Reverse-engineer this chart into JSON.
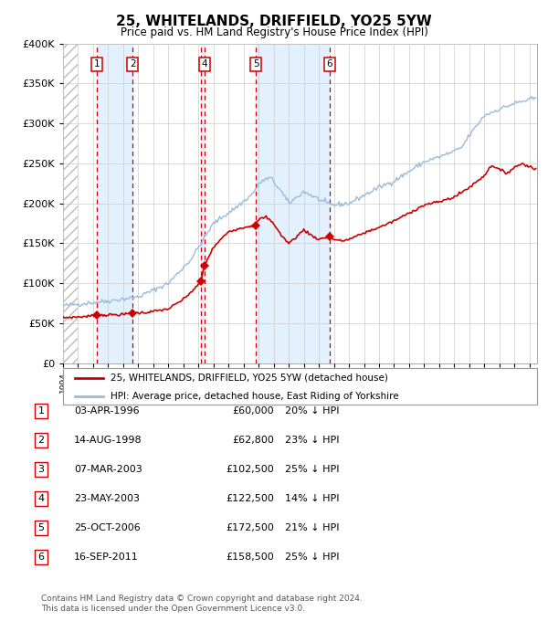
{
  "title": "25, WHITELANDS, DRIFFIELD, YO25 5YW",
  "subtitle": "Price paid vs. HM Land Registry's House Price Index (HPI)",
  "transactions": [
    {
      "num": 1,
      "date": "1996-04-03",
      "price": 60000,
      "year_x": 1996.25,
      "show_box": true
    },
    {
      "num": 2,
      "date": "1998-08-14",
      "price": 62800,
      "year_x": 1998.62,
      "show_box": true
    },
    {
      "num": 3,
      "date": "2003-03-07",
      "price": 102500,
      "year_x": 2003.18,
      "show_box": false
    },
    {
      "num": 4,
      "date": "2003-05-23",
      "price": 122500,
      "year_x": 2003.39,
      "show_box": true
    },
    {
      "num": 5,
      "date": "2006-10-25",
      "price": 172500,
      "year_x": 2006.82,
      "show_box": true
    },
    {
      "num": 6,
      "date": "2011-09-16",
      "price": 158500,
      "year_x": 2011.71,
      "show_box": true
    }
  ],
  "legend_line1": "25, WHITELANDS, DRIFFIELD, YO25 5YW (detached house)",
  "legend_line2": "HPI: Average price, detached house, East Riding of Yorkshire",
  "table": [
    {
      "num": 1,
      "date_str": "03-APR-1996",
      "price_str": "£60,000",
      "pct_str": "20% ↓ HPI"
    },
    {
      "num": 2,
      "date_str": "14-AUG-1998",
      "price_str": "£62,800",
      "pct_str": "23% ↓ HPI"
    },
    {
      "num": 3,
      "date_str": "07-MAR-2003",
      "price_str": "£102,500",
      "pct_str": "25% ↓ HPI"
    },
    {
      "num": 4,
      "date_str": "23-MAY-2003",
      "price_str": "£122,500",
      "pct_str": "14% ↓ HPI"
    },
    {
      "num": 5,
      "date_str": "25-OCT-2006",
      "price_str": "£172,500",
      "pct_str": "21% ↓ HPI"
    },
    {
      "num": 6,
      "date_str": "16-SEP-2011",
      "price_str": "£158,500",
      "pct_str": "25% ↓ HPI"
    }
  ],
  "footer1": "Contains HM Land Registry data © Crown copyright and database right 2024.",
  "footer2": "This data is licensed under the Open Government Licence v3.0.",
  "price_line_color": "#cc0000",
  "hpi_line_color": "#99bbdd",
  "marker_color": "#cc0000",
  "vline_color": "#cc0000",
  "shade_color": "#ddeeff",
  "grid_color": "#cccccc",
  "ylim": [
    0,
    400000
  ],
  "yticks": [
    0,
    50000,
    100000,
    150000,
    200000,
    250000,
    300000,
    350000,
    400000
  ],
  "xlim_start": 1994.0,
  "xlim_end": 2025.5,
  "hpi_anchors": [
    [
      1994.0,
      72000
    ],
    [
      1995.0,
      74000
    ],
    [
      1997.0,
      78000
    ],
    [
      1999.0,
      83000
    ],
    [
      2001.0,
      100000
    ],
    [
      2002.5,
      130000
    ],
    [
      2004.0,
      175000
    ],
    [
      2005.5,
      195000
    ],
    [
      2006.5,
      210000
    ],
    [
      2007.2,
      228000
    ],
    [
      2007.8,
      232000
    ],
    [
      2008.5,
      215000
    ],
    [
      2009.0,
      200000
    ],
    [
      2009.5,
      207000
    ],
    [
      2010.0,
      215000
    ],
    [
      2010.5,
      210000
    ],
    [
      2011.0,
      205000
    ],
    [
      2011.5,
      200000
    ],
    [
      2012.0,
      198000
    ],
    [
      2013.0,
      200000
    ],
    [
      2014.0,
      210000
    ],
    [
      2015.0,
      220000
    ],
    [
      2016.0,
      228000
    ],
    [
      2017.0,
      240000
    ],
    [
      2018.0,
      252000
    ],
    [
      2019.0,
      258000
    ],
    [
      2020.0,
      265000
    ],
    [
      2020.5,
      270000
    ],
    [
      2021.0,
      285000
    ],
    [
      2022.0,
      310000
    ],
    [
      2023.0,
      318000
    ],
    [
      2024.0,
      325000
    ],
    [
      2025.5,
      332000
    ]
  ],
  "price_anchors": [
    [
      1994.0,
      57000
    ],
    [
      1995.5,
      58500
    ],
    [
      1996.25,
      60000
    ],
    [
      1997.0,
      60500
    ],
    [
      1998.0,
      61000
    ],
    [
      1998.62,
      62800
    ],
    [
      1999.5,
      63500
    ],
    [
      2001.0,
      68000
    ],
    [
      2002.0,
      80000
    ],
    [
      2003.0,
      98000
    ],
    [
      2003.18,
      102500
    ],
    [
      2003.39,
      122500
    ],
    [
      2004.0,
      145000
    ],
    [
      2005.0,
      165000
    ],
    [
      2006.0,
      170000
    ],
    [
      2006.5,
      172000
    ],
    [
      2006.82,
      172500
    ],
    [
      2007.0,
      180000
    ],
    [
      2007.5,
      183000
    ],
    [
      2008.0,
      175000
    ],
    [
      2008.5,
      160000
    ],
    [
      2009.0,
      150000
    ],
    [
      2009.5,
      158000
    ],
    [
      2010.0,
      167000
    ],
    [
      2010.5,
      160000
    ],
    [
      2011.0,
      155000
    ],
    [
      2011.71,
      158500
    ],
    [
      2012.0,
      155000
    ],
    [
      2012.5,
      153000
    ],
    [
      2013.0,
      155000
    ],
    [
      2014.0,
      163000
    ],
    [
      2015.0,
      170000
    ],
    [
      2016.0,
      178000
    ],
    [
      2017.0,
      188000
    ],
    [
      2018.0,
      198000
    ],
    [
      2018.5,
      200000
    ],
    [
      2019.0,
      202000
    ],
    [
      2020.0,
      208000
    ],
    [
      2021.0,
      220000
    ],
    [
      2022.0,
      235000
    ],
    [
      2022.5,
      248000
    ],
    [
      2023.0,
      242000
    ],
    [
      2023.5,
      238000
    ],
    [
      2024.0,
      245000
    ],
    [
      2024.5,
      250000
    ],
    [
      2025.5,
      242000
    ]
  ],
  "hpi_noise_seed": 42,
  "hpi_noise_std": 1500,
  "price_noise_seed": 7,
  "price_noise_std": 800
}
